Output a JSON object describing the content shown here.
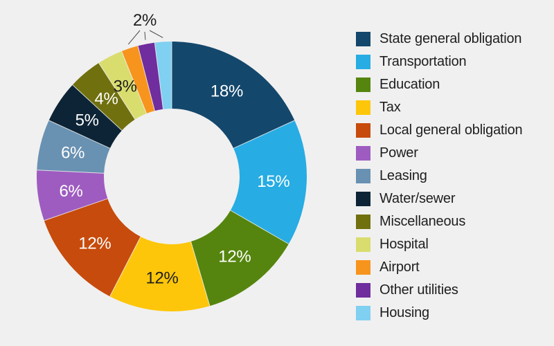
{
  "background_color": "#F0F0F0",
  "text_color": "#1E1E1E",
  "chart_data": {
    "type": "pie",
    "subtype": "donut",
    "title": "",
    "legend_position": "right",
    "start_angle_deg": 0,
    "direction": "clockwise",
    "value_unit": "%",
    "total": 99,
    "categories": [
      "State general obligation",
      "Transportation",
      "Education",
      "Tax",
      "Local general obligation",
      "Power",
      "Leasing",
      "Water/sewer",
      "Miscellaneous",
      "Hospital",
      "Airport",
      "Other utilities",
      "Housing"
    ],
    "values": [
      18,
      15,
      12,
      12,
      12,
      6,
      6,
      5,
      4,
      3,
      2,
      2,
      2
    ],
    "items": [
      {
        "key": "state-general-obligation",
        "label": "State general obligation",
        "value": 18,
        "display": "18%",
        "color": "#14476C",
        "label_color": "#FFFFFF",
        "label_placement": "inside"
      },
      {
        "key": "transportation",
        "label": "Transportation",
        "value": 15,
        "display": "15%",
        "color": "#27ACE3",
        "label_color": "#FFFFFF",
        "label_placement": "inside"
      },
      {
        "key": "education",
        "label": "Education",
        "value": 12,
        "display": "12%",
        "color": "#55850E",
        "label_color": "#FFFFFF",
        "label_placement": "inside"
      },
      {
        "key": "tax",
        "label": "Tax",
        "value": 12,
        "display": "12%",
        "color": "#FEC60A",
        "label_color": "#1E1E1E",
        "label_placement": "inside"
      },
      {
        "key": "local-general-obligation",
        "label": "Local general obligation",
        "value": 12,
        "display": "12%",
        "color": "#C74B0C",
        "label_color": "#FFFFFF",
        "label_placement": "inside"
      },
      {
        "key": "power",
        "label": "Power",
        "value": 6,
        "display": "6%",
        "color": "#9E5CC0",
        "label_color": "#FFFFFF",
        "label_placement": "inside"
      },
      {
        "key": "leasing",
        "label": "Leasing",
        "value": 6,
        "display": "6%",
        "color": "#6991B2",
        "label_color": "#FFFFFF",
        "label_placement": "inside"
      },
      {
        "key": "water-sewer",
        "label": "Water/sewer",
        "value": 5,
        "display": "5%",
        "color": "#0D2436",
        "label_color": "#FFFFFF",
        "label_placement": "inside"
      },
      {
        "key": "miscellaneous",
        "label": "Miscellaneous",
        "value": 4,
        "display": "4%",
        "color": "#70700F",
        "label_color": "#FFFFFF",
        "label_placement": "inside"
      },
      {
        "key": "hospital",
        "label": "Hospital",
        "value": 3,
        "display": "3%",
        "color": "#D9DD6E",
        "label_color": "#1E1E1E",
        "label_placement": "inside"
      },
      {
        "key": "airport",
        "label": "Airport",
        "value": 2,
        "display": "2%",
        "color": "#F7941D",
        "label_color": "#1E1E1E",
        "label_placement": "outside"
      },
      {
        "key": "other-utilities",
        "label": "Other utilities",
        "value": 2,
        "display": "2%",
        "color": "#6F2D9D",
        "label_color": "#1E1E1E",
        "label_placement": "outside"
      },
      {
        "key": "housing",
        "label": "Housing",
        "value": 2,
        "display": "2%",
        "color": "#7FD0F1",
        "label_color": "#1E1E1E",
        "label_placement": "outside"
      }
    ],
    "outside_label": {
      "text": "2%",
      "applies_to": [
        "Airport",
        "Other utilities",
        "Housing"
      ]
    }
  }
}
